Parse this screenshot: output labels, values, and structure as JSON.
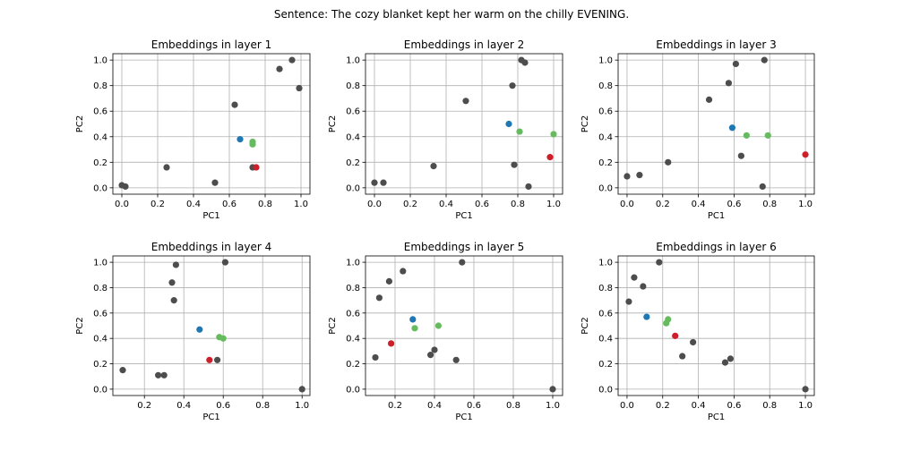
{
  "suptitle": "Sentence: The cozy blanket kept her warm on the chilly EVENING.",
  "colors": {
    "other": "#4d4d4d",
    "blue": "#1f77b4",
    "green": "#66bb5e",
    "red": "#cc1f2a",
    "grid": "#b0b0b0"
  },
  "chart_data": [
    {
      "type": "scatter",
      "title": "Embeddings in layer 1",
      "xlabel": "PC1",
      "ylabel": "PC2",
      "xlim": [
        -0.05,
        1.05
      ],
      "ylim": [
        -0.05,
        1.05
      ],
      "xticks": [
        0.0,
        0.2,
        0.4,
        0.6,
        0.8,
        1.0
      ],
      "yticks": [
        0.0,
        0.2,
        0.4,
        0.6,
        0.8,
        1.0
      ],
      "grid": true,
      "points": [
        {
          "x": 0.0,
          "y": 0.02,
          "c": "other"
        },
        {
          "x": 0.02,
          "y": 0.01,
          "c": "other"
        },
        {
          "x": 0.25,
          "y": 0.16,
          "c": "other"
        },
        {
          "x": 0.52,
          "y": 0.04,
          "c": "other"
        },
        {
          "x": 0.63,
          "y": 0.65,
          "c": "other"
        },
        {
          "x": 0.73,
          "y": 0.16,
          "c": "other"
        },
        {
          "x": 0.88,
          "y": 0.93,
          "c": "other"
        },
        {
          "x": 0.95,
          "y": 1.0,
          "c": "other"
        },
        {
          "x": 0.99,
          "y": 0.78,
          "c": "other"
        },
        {
          "x": 0.66,
          "y": 0.38,
          "c": "blue"
        },
        {
          "x": 0.73,
          "y": 0.36,
          "c": "green"
        },
        {
          "x": 0.73,
          "y": 0.34,
          "c": "green"
        },
        {
          "x": 0.75,
          "y": 0.16,
          "c": "red"
        }
      ]
    },
    {
      "type": "scatter",
      "title": "Embeddings in layer 2",
      "xlabel": "PC1",
      "ylabel": "PC2",
      "xlim": [
        -0.05,
        1.05
      ],
      "ylim": [
        -0.05,
        1.05
      ],
      "xticks": [
        0.0,
        0.2,
        0.4,
        0.6,
        0.8,
        1.0
      ],
      "yticks": [
        0.0,
        0.2,
        0.4,
        0.6,
        0.8,
        1.0
      ],
      "grid": true,
      "points": [
        {
          "x": 0.0,
          "y": 0.04,
          "c": "other"
        },
        {
          "x": 0.05,
          "y": 0.04,
          "c": "other"
        },
        {
          "x": 0.33,
          "y": 0.17,
          "c": "other"
        },
        {
          "x": 0.51,
          "y": 0.68,
          "c": "other"
        },
        {
          "x": 0.77,
          "y": 0.8,
          "c": "other"
        },
        {
          "x": 0.78,
          "y": 0.18,
          "c": "other"
        },
        {
          "x": 0.82,
          "y": 1.0,
          "c": "other"
        },
        {
          "x": 0.84,
          "y": 0.98,
          "c": "other"
        },
        {
          "x": 0.86,
          "y": 0.01,
          "c": "other"
        },
        {
          "x": 0.75,
          "y": 0.5,
          "c": "blue"
        },
        {
          "x": 0.81,
          "y": 0.44,
          "c": "green"
        },
        {
          "x": 1.0,
          "y": 0.42,
          "c": "green"
        },
        {
          "x": 0.98,
          "y": 0.24,
          "c": "red"
        }
      ]
    },
    {
      "type": "scatter",
      "title": "Embeddings in layer 3",
      "xlabel": "PC1",
      "ylabel": "PC2",
      "xlim": [
        -0.05,
        1.05
      ],
      "ylim": [
        -0.05,
        1.05
      ],
      "xticks": [
        0.0,
        0.2,
        0.4,
        0.6,
        0.8,
        1.0
      ],
      "yticks": [
        0.0,
        0.2,
        0.4,
        0.6,
        0.8,
        1.0
      ],
      "grid": true,
      "points": [
        {
          "x": 0.0,
          "y": 0.09,
          "c": "other"
        },
        {
          "x": 0.07,
          "y": 0.1,
          "c": "other"
        },
        {
          "x": 0.23,
          "y": 0.2,
          "c": "other"
        },
        {
          "x": 0.46,
          "y": 0.69,
          "c": "other"
        },
        {
          "x": 0.57,
          "y": 0.82,
          "c": "other"
        },
        {
          "x": 0.61,
          "y": 0.97,
          "c": "other"
        },
        {
          "x": 0.64,
          "y": 0.25,
          "c": "other"
        },
        {
          "x": 0.76,
          "y": 0.01,
          "c": "other"
        },
        {
          "x": 0.77,
          "y": 1.0,
          "c": "other"
        },
        {
          "x": 0.59,
          "y": 0.47,
          "c": "blue"
        },
        {
          "x": 0.67,
          "y": 0.41,
          "c": "green"
        },
        {
          "x": 0.79,
          "y": 0.41,
          "c": "green"
        },
        {
          "x": 1.0,
          "y": 0.26,
          "c": "red"
        }
      ]
    },
    {
      "type": "scatter",
      "title": "Embeddings in layer 4",
      "xlabel": "PC1",
      "ylabel": "PC2",
      "xlim": [
        0.04,
        1.04
      ],
      "ylim": [
        -0.05,
        1.05
      ],
      "xticks": [
        0.2,
        0.4,
        0.6,
        0.8,
        1.0
      ],
      "yticks": [
        0.0,
        0.2,
        0.4,
        0.6,
        0.8,
        1.0
      ],
      "grid": true,
      "points": [
        {
          "x": 0.09,
          "y": 0.15,
          "c": "other"
        },
        {
          "x": 0.27,
          "y": 0.11,
          "c": "other"
        },
        {
          "x": 0.3,
          "y": 0.11,
          "c": "other"
        },
        {
          "x": 0.34,
          "y": 0.84,
          "c": "other"
        },
        {
          "x": 0.35,
          "y": 0.7,
          "c": "other"
        },
        {
          "x": 0.36,
          "y": 0.98,
          "c": "other"
        },
        {
          "x": 0.57,
          "y": 0.23,
          "c": "other"
        },
        {
          "x": 0.61,
          "y": 1.0,
          "c": "other"
        },
        {
          "x": 1.0,
          "y": 0.0,
          "c": "other"
        },
        {
          "x": 0.48,
          "y": 0.47,
          "c": "blue"
        },
        {
          "x": 0.58,
          "y": 0.41,
          "c": "green"
        },
        {
          "x": 0.6,
          "y": 0.4,
          "c": "green"
        },
        {
          "x": 0.53,
          "y": 0.23,
          "c": "red"
        }
      ]
    },
    {
      "type": "scatter",
      "title": "Embeddings in layer 5",
      "xlabel": "PC1",
      "ylabel": "PC2",
      "xlim": [
        0.05,
        1.05
      ],
      "ylim": [
        -0.05,
        1.05
      ],
      "xticks": [
        0.2,
        0.4,
        0.6,
        0.8,
        1.0
      ],
      "yticks": [
        0.0,
        0.2,
        0.4,
        0.6,
        0.8,
        1.0
      ],
      "grid": true,
      "points": [
        {
          "x": 0.1,
          "y": 0.25,
          "c": "other"
        },
        {
          "x": 0.12,
          "y": 0.72,
          "c": "other"
        },
        {
          "x": 0.17,
          "y": 0.85,
          "c": "other"
        },
        {
          "x": 0.24,
          "y": 0.93,
          "c": "other"
        },
        {
          "x": 0.38,
          "y": 0.27,
          "c": "other"
        },
        {
          "x": 0.4,
          "y": 0.31,
          "c": "other"
        },
        {
          "x": 0.51,
          "y": 0.23,
          "c": "other"
        },
        {
          "x": 0.54,
          "y": 1.0,
          "c": "other"
        },
        {
          "x": 1.0,
          "y": 0.0,
          "c": "other"
        },
        {
          "x": 0.29,
          "y": 0.55,
          "c": "blue"
        },
        {
          "x": 0.3,
          "y": 0.48,
          "c": "green"
        },
        {
          "x": 0.42,
          "y": 0.5,
          "c": "green"
        },
        {
          "x": 0.18,
          "y": 0.36,
          "c": "red"
        }
      ]
    },
    {
      "type": "scatter",
      "title": "Embeddings in layer 6",
      "xlabel": "PC1",
      "ylabel": "PC2",
      "xlim": [
        -0.05,
        1.05
      ],
      "ylim": [
        -0.05,
        1.05
      ],
      "xticks": [
        0.0,
        0.2,
        0.4,
        0.6,
        0.8,
        1.0
      ],
      "yticks": [
        0.0,
        0.2,
        0.4,
        0.6,
        0.8,
        1.0
      ],
      "grid": true,
      "points": [
        {
          "x": 0.01,
          "y": 0.69,
          "c": "other"
        },
        {
          "x": 0.04,
          "y": 0.88,
          "c": "other"
        },
        {
          "x": 0.09,
          "y": 0.81,
          "c": "other"
        },
        {
          "x": 0.18,
          "y": 1.0,
          "c": "other"
        },
        {
          "x": 0.31,
          "y": 0.26,
          "c": "other"
        },
        {
          "x": 0.37,
          "y": 0.37,
          "c": "other"
        },
        {
          "x": 0.55,
          "y": 0.21,
          "c": "other"
        },
        {
          "x": 0.58,
          "y": 0.24,
          "c": "other"
        },
        {
          "x": 1.0,
          "y": 0.0,
          "c": "other"
        },
        {
          "x": 0.11,
          "y": 0.57,
          "c": "blue"
        },
        {
          "x": 0.22,
          "y": 0.52,
          "c": "green"
        },
        {
          "x": 0.23,
          "y": 0.55,
          "c": "green"
        },
        {
          "x": 0.27,
          "y": 0.42,
          "c": "red"
        }
      ]
    }
  ]
}
